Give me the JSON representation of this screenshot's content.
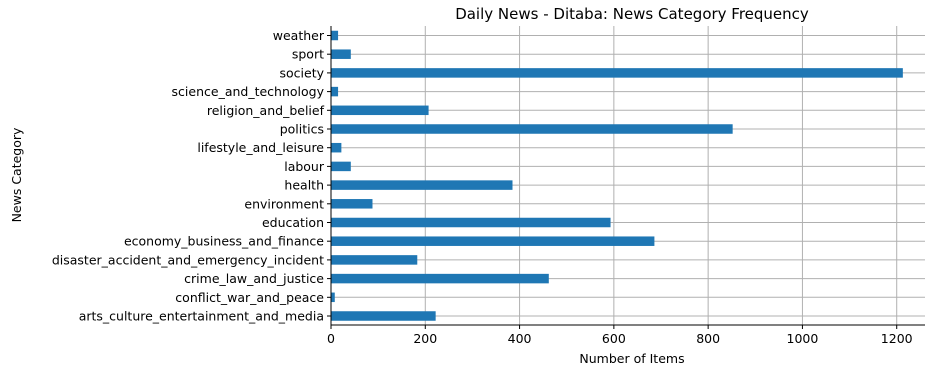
{
  "chart_data": {
    "type": "bar",
    "orientation": "horizontal",
    "title": "Daily News - Ditaba: News Category Frequency",
    "xlabel": "Number of Items",
    "ylabel": "News Category",
    "xlim": [
      0,
      1260
    ],
    "xticks": [
      0,
      200,
      400,
      600,
      800,
      1000,
      1200
    ],
    "grid": true,
    "bar_color": "#1f77b4",
    "categories": [
      "arts_culture_entertainment_and_media",
      "conflict_war_and_peace",
      "crime_law_and_justice",
      "disaster_accident_and_emergency_incident",
      "economy_business_and_finance",
      "education",
      "environment",
      "health",
      "labour",
      "lifestyle_and_leisure",
      "politics",
      "religion_and_belief",
      "science_and_technology",
      "society",
      "sport",
      "weather"
    ],
    "values": [
      222,
      8,
      462,
      183,
      686,
      593,
      88,
      385,
      42,
      22,
      852,
      207,
      15,
      1213,
      42,
      15
    ]
  }
}
